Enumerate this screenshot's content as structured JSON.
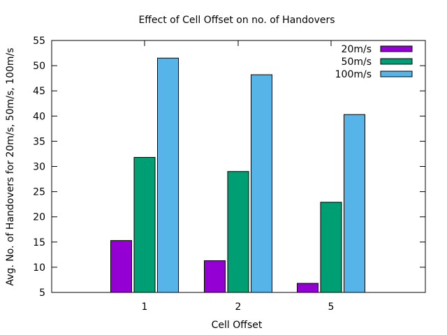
{
  "chart_data": {
    "type": "bar",
    "title": "Effect of Cell Offset on no. of Handovers",
    "xlabel": "Cell Offset",
    "ylabel": "Avg. No. of Handovers for 20m/s, 50m/s, 100m/s",
    "categories": [
      "1",
      "2",
      "5"
    ],
    "series": [
      {
        "name": "20m/s",
        "color": "#9400d3",
        "values": [
          15.3,
          11.3,
          6.8
        ]
      },
      {
        "name": "50m/s",
        "color": "#009e73",
        "values": [
          31.8,
          29.0,
          22.9
        ]
      },
      {
        "name": "100m/s",
        "color": "#56b4e9",
        "values": [
          51.5,
          48.2,
          40.3
        ]
      }
    ],
    "ylim": [
      5,
      55
    ],
    "yticks": [
      5,
      10,
      15,
      20,
      25,
      30,
      35,
      40,
      45,
      50,
      55
    ],
    "grid": false,
    "legend_position": "top-right",
    "bar_baseline": 5
  }
}
